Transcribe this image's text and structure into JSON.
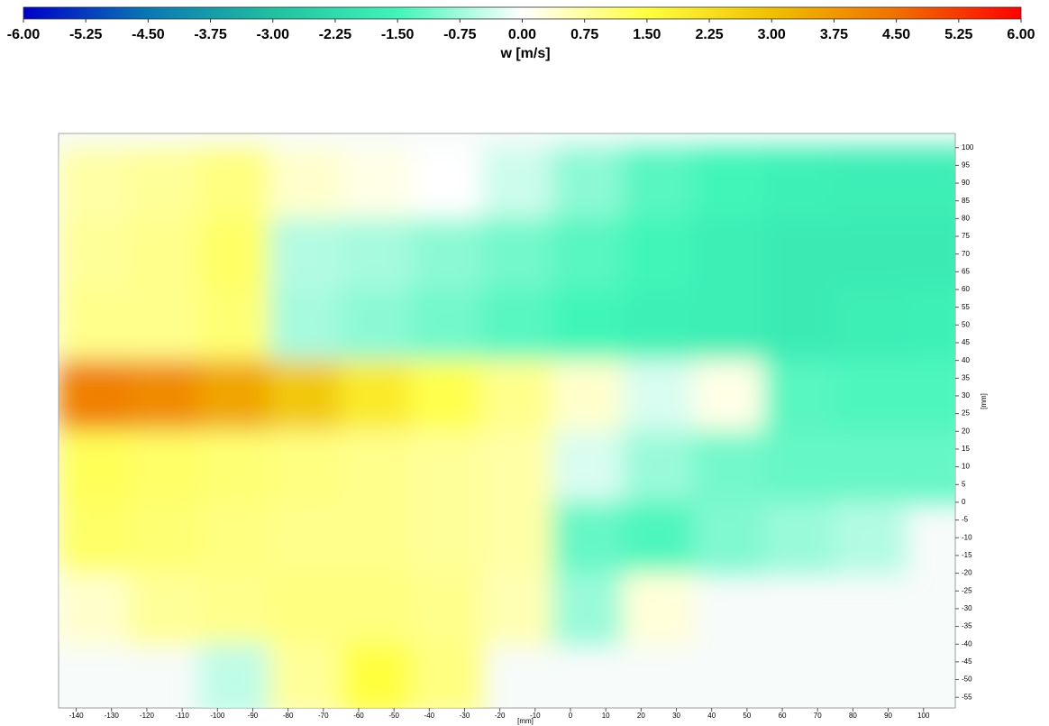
{
  "chart_data": {
    "type": "heatmap",
    "colorbar_label": "w [m/s]",
    "clim": [
      -6,
      6
    ],
    "colorscale": [
      "#0000c8",
      "#0a78b4",
      "#20c0a0",
      "#40f5b8",
      "#ffffff",
      "#ffff40",
      "#f0c000",
      "#f07000",
      "#ff0000"
    ],
    "colorbar_ticks": [
      {
        "value": -6,
        "label": "-6.00"
      },
      {
        "value": -5.25,
        "label": "-5.25"
      },
      {
        "value": -4.5,
        "label": "-4.50"
      },
      {
        "value": -3.75,
        "label": "-3.75"
      },
      {
        "value": -3,
        "label": "-3.00"
      },
      {
        "value": -2.25,
        "label": "-2.25"
      },
      {
        "value": -1.5,
        "label": "-1.50"
      },
      {
        "value": -0.75,
        "label": "-0.75"
      },
      {
        "value": 0,
        "label": "0.00"
      },
      {
        "value": 0.75,
        "label": "0.75"
      },
      {
        "value": 1.5,
        "label": "1.50"
      },
      {
        "value": 2.25,
        "label": "2.25"
      },
      {
        "value": 3,
        "label": "3.00"
      },
      {
        "value": 3.75,
        "label": "3.75"
      },
      {
        "value": 4.5,
        "label": "4.50"
      },
      {
        "value": 5.25,
        "label": "5.25"
      },
      {
        "value": 6,
        "label": "6.00"
      }
    ],
    "x_label": "[mm]",
    "y_label": "[mm]",
    "xlim": [
      -145,
      109
    ],
    "ylim": [
      -58,
      104
    ],
    "xticks": [
      -140,
      -130,
      -120,
      -110,
      -100,
      -90,
      -80,
      -70,
      -60,
      -50,
      -40,
      -30,
      -20,
      -10,
      0,
      10,
      20,
      30,
      40,
      50,
      60,
      70,
      80,
      90,
      100
    ],
    "yticks": [
      -55,
      -50,
      -45,
      -40,
      -35,
      -30,
      -25,
      -20,
      -15,
      -10,
      -5,
      0,
      5,
      10,
      15,
      20,
      25,
      30,
      35,
      40,
      45,
      50,
      55,
      60,
      65,
      70,
      75,
      80,
      85,
      90,
      95,
      100
    ],
    "x": [
      -135,
      -115,
      -95,
      -75,
      -55,
      -35,
      -15,
      5,
      25,
      45,
      65,
      85,
      105
    ],
    "y": [
      90,
      70,
      50,
      30,
      10,
      -10,
      -30,
      -50
    ],
    "values": [
      [
        0.7,
        0.8,
        1.0,
        0.4,
        0.2,
        0.0,
        -0.4,
        -0.9,
        -1.3,
        -1.5,
        -1.6,
        -1.7,
        -1.7
      ],
      [
        0.8,
        0.9,
        1.2,
        -0.6,
        -0.7,
        -0.9,
        -1.1,
        -1.3,
        -1.5,
        -1.7,
        -1.8,
        -1.8,
        -1.8
      ],
      [
        0.9,
        0.9,
        1.1,
        -0.7,
        -0.9,
        -1.1,
        -1.3,
        -1.5,
        -1.6,
        -1.7,
        -1.8,
        -1.7,
        -1.6
      ],
      [
        4.2,
        4.0,
        3.5,
        2.8,
        2.0,
        1.4,
        0.9,
        0.4,
        -0.3,
        0.2,
        -1.3,
        -1.4,
        -1.4
      ],
      [
        1.3,
        1.2,
        1.1,
        1.0,
        0.9,
        0.8,
        0.7,
        -0.3,
        -0.8,
        -1.1,
        -1.2,
        -1.2,
        -1.2
      ],
      [
        1.2,
        1.1,
        1.0,
        0.9,
        0.9,
        0.8,
        0.7,
        -1.2,
        -1.4,
        -1.0,
        -0.8,
        -0.6,
        null
      ],
      [
        0.4,
        0.8,
        0.9,
        1.0,
        1.0,
        0.9,
        0.6,
        -0.8,
        0.3,
        null,
        null,
        null,
        null
      ],
      [
        null,
        null,
        -0.5,
        0.8,
        1.5,
        1.0,
        null,
        null,
        null,
        null,
        null,
        null,
        null
      ]
    ]
  }
}
